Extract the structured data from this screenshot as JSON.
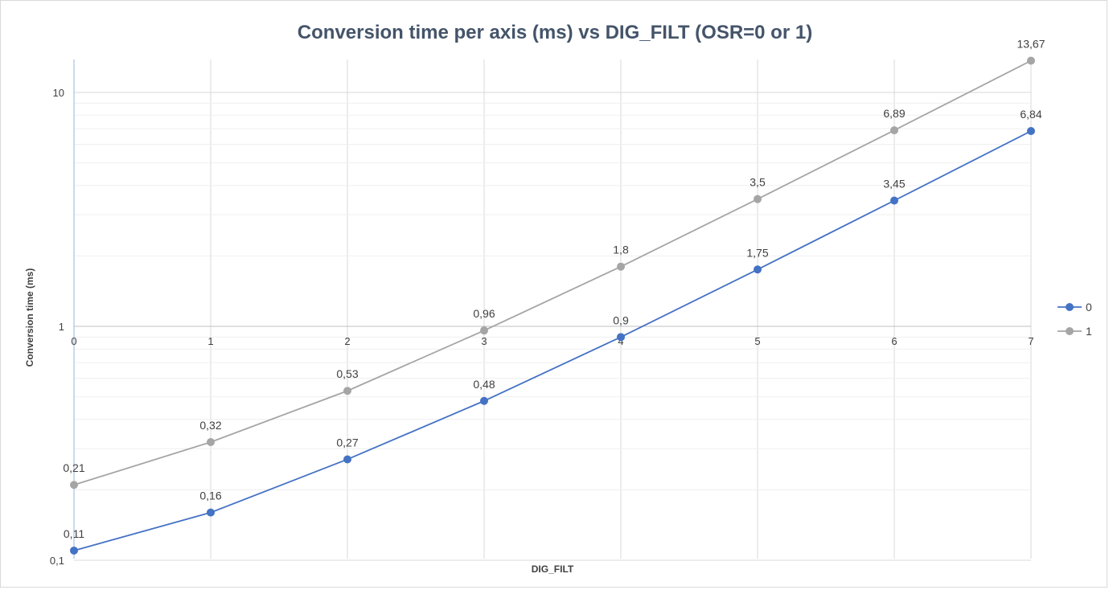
{
  "chart_data": {
    "type": "line",
    "title": "Conversion time per axis (ms) vs DIG_FILT (OSR=0 or 1)",
    "xlabel": "DIG_FILT",
    "ylabel": "Conversion time (ms)",
    "x": [
      0,
      1,
      2,
      3,
      4,
      5,
      6,
      7
    ],
    "x_tick_labels": [
      "0",
      "1",
      "2",
      "3",
      "4",
      "5",
      "6",
      "7"
    ],
    "y_scale": "log",
    "ylim": [
      0.1,
      14
    ],
    "y_tick_labels": [
      "0,1",
      "1",
      "10"
    ],
    "y_tick_values": [
      0.1,
      1,
      10
    ],
    "grid": true,
    "legend_position": "right",
    "series": [
      {
        "name": "0",
        "color": "#4472c4",
        "values": [
          0.11,
          0.16,
          0.27,
          0.48,
          0.9,
          1.75,
          3.45,
          6.84
        ],
        "labels": [
          "0,11",
          "0,16",
          "0,27",
          "0,48",
          "0,9",
          "1,75",
          "3,45",
          "6,84"
        ]
      },
      {
        "name": "1",
        "color": "#a5a5a5",
        "values": [
          0.21,
          0.32,
          0.53,
          0.96,
          1.8,
          3.5,
          6.89,
          13.67
        ],
        "labels": [
          "0,21",
          "0,32",
          "0,53",
          "0,96",
          "1,8",
          "3,5",
          "6,89",
          "13,67"
        ]
      }
    ]
  }
}
